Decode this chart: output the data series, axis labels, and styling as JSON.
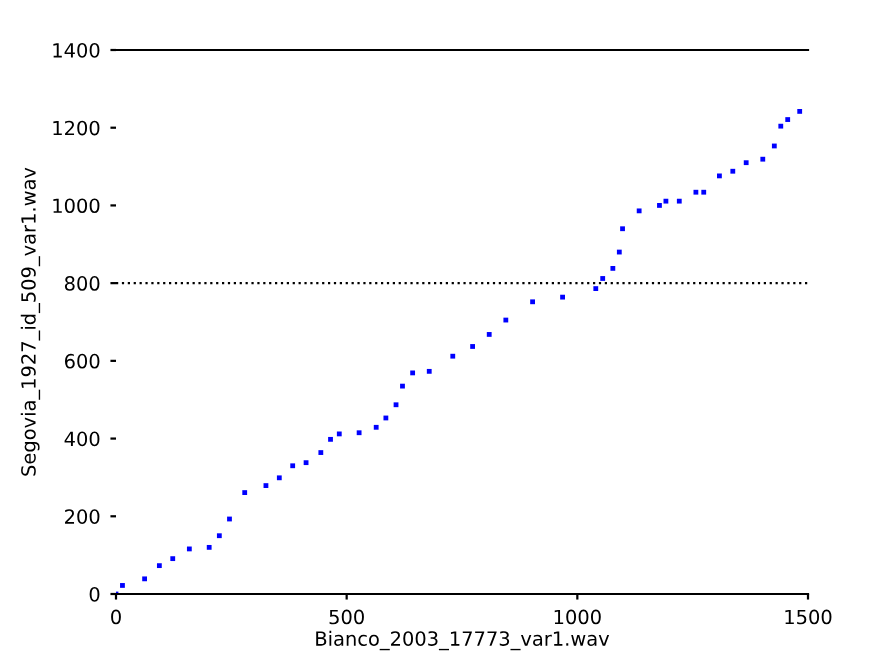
{
  "chart_data": {
    "type": "scatter",
    "xlabel": "Bianco_2003_17773_var1.wav",
    "ylabel": "Segovia_1927_id_509_var1.wav",
    "x": [
      0,
      14,
      62,
      94,
      123,
      159,
      202,
      224,
      246,
      279,
      325,
      354,
      383,
      412,
      444,
      465,
      484,
      527,
      564,
      585,
      607,
      621,
      643,
      679,
      730,
      773,
      809,
      845,
      903,
      968,
      1040,
      1055,
      1077,
      1091,
      1098,
      1134,
      1178,
      1192,
      1221,
      1257,
      1274,
      1308,
      1337,
      1366,
      1402,
      1427,
      1441,
      1456,
      1482
    ],
    "series": [
      {
        "color": "#0000ff",
        "values": [
          0,
          22,
          39,
          73,
          91,
          116,
          120,
          150,
          193,
          261,
          279,
          299,
          330,
          338,
          364,
          398,
          412,
          415,
          429,
          453,
          487,
          535,
          569,
          573,
          612,
          637,
          668,
          705,
          752,
          764,
          786,
          812,
          838,
          880,
          940,
          986,
          1000,
          1011,
          1011,
          1034,
          1034,
          1076,
          1088,
          1110,
          1119,
          1153,
          1204,
          1221,
          1242
        ]
      }
    ],
    "xlim": [
      0,
      1500
    ],
    "ylim": [
      0,
      1400
    ],
    "xticks": [
      0,
      500,
      1000,
      1500
    ],
    "yticks": [
      0,
      200,
      400,
      600,
      800,
      1000,
      1200,
      1400
    ],
    "ref_lines": [
      {
        "axis": "y",
        "value": 800,
        "color": "#000000",
        "line_style": "dotted"
      }
    ],
    "grid": false,
    "marker": "square"
  }
}
